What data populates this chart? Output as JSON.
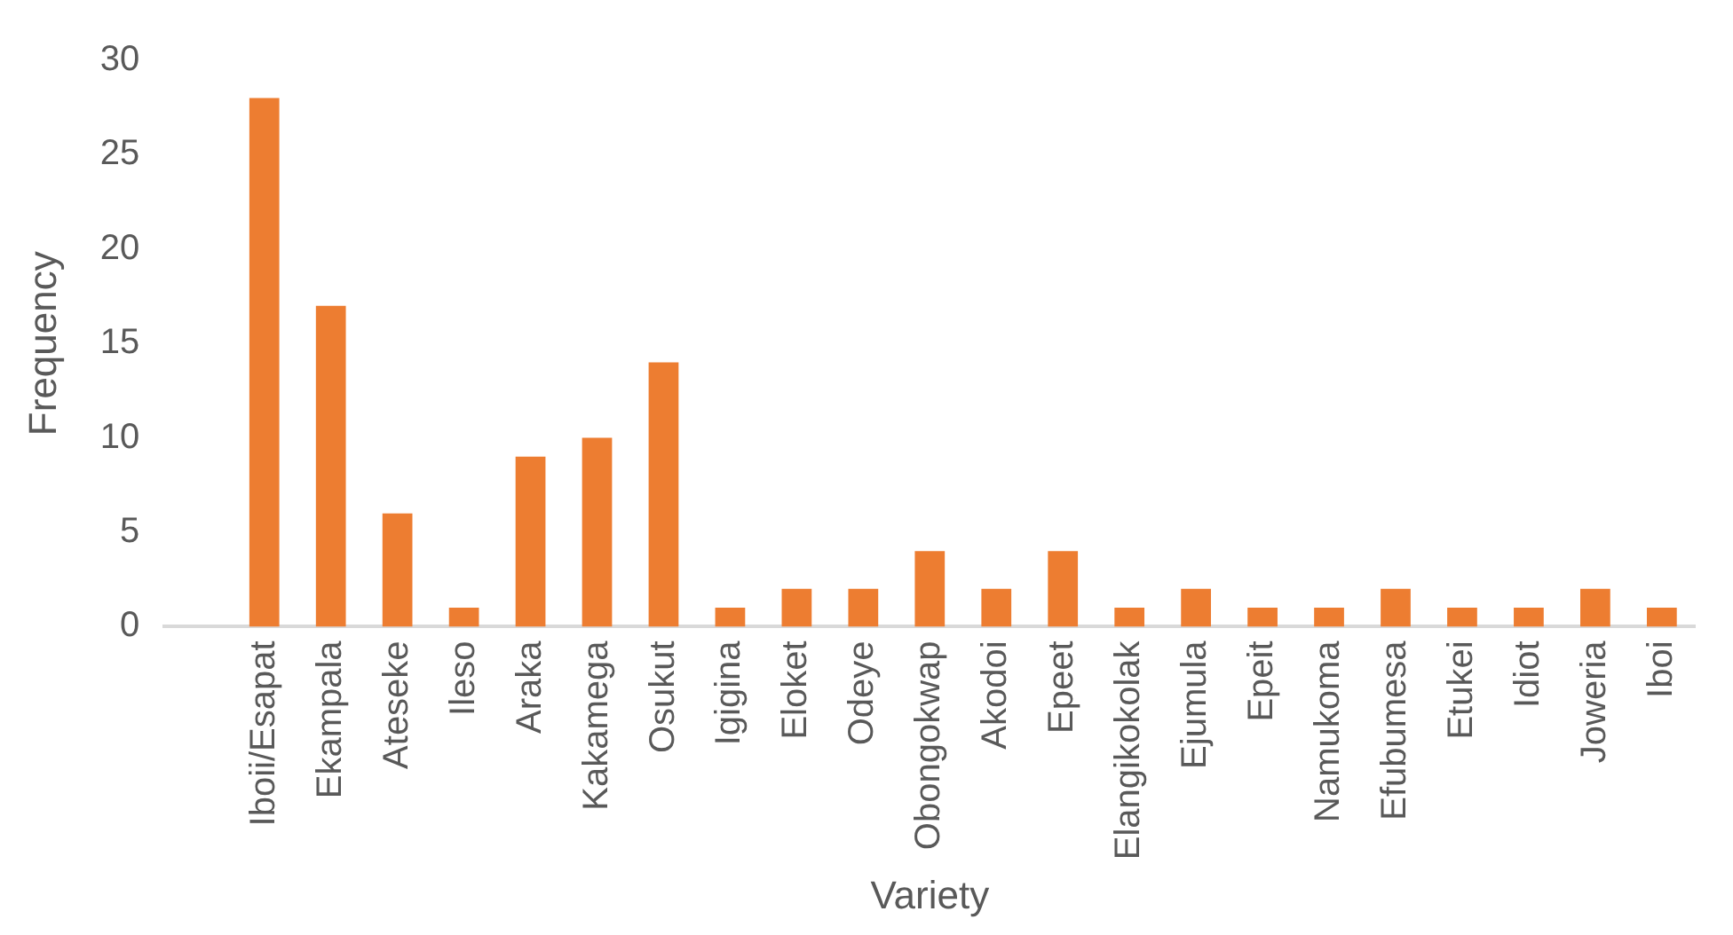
{
  "chart_data": {
    "type": "bar",
    "xlabel": "Variety",
    "ylabel": "Frequency",
    "categories": [
      null,
      "Iboii/Esapat",
      "Ekampala",
      "Ateseke",
      "Ileso",
      "Araka",
      "Kakamega",
      "Osukut",
      "Igigina",
      "Eloket",
      "Odeye",
      "Obongokwap",
      "Akodoi",
      "Epeet",
      "Elangikokolak",
      "Ejumula",
      "Epeit",
      "Namukoma",
      "Efubumesa",
      "Etukei",
      "Idiot",
      "Joweria",
      "Iboi"
    ],
    "values": [
      null,
      28,
      17,
      6,
      1,
      9,
      10,
      14,
      1,
      2,
      2,
      4,
      2,
      4,
      1,
      2,
      1,
      1,
      2,
      1,
      1,
      2,
      1
    ],
    "color": "#ed7d31",
    "ylim": [
      0,
      30
    ],
    "yticks": [
      0,
      5,
      10,
      15,
      20,
      25,
      30
    ],
    "grid": false,
    "legend": false
  }
}
